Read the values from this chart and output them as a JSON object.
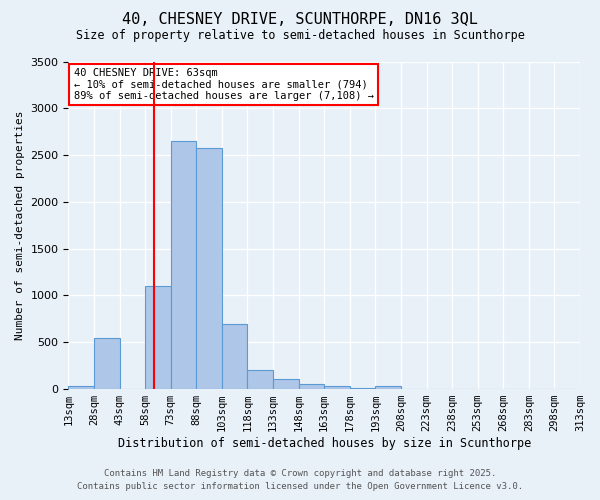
{
  "title": "40, CHESNEY DRIVE, SCUNTHORPE, DN16 3QL",
  "subtitle": "Size of property relative to semi-detached houses in Scunthorpe",
  "xlabel": "Distribution of semi-detached houses by size in Scunthorpe",
  "ylabel": "Number of semi-detached properties",
  "bin_labels": [
    "13sqm",
    "28sqm",
    "43sqm",
    "58sqm",
    "73sqm",
    "88sqm",
    "103sqm",
    "118sqm",
    "133sqm",
    "148sqm",
    "163sqm",
    "178sqm",
    "193sqm",
    "208sqm",
    "223sqm",
    "238sqm",
    "253sqm",
    "268sqm",
    "283sqm",
    "298sqm",
    "313sqm"
  ],
  "bin_left_edges": [
    13,
    28,
    43,
    58,
    73,
    88,
    103,
    118,
    133,
    148,
    163,
    178,
    193,
    208,
    223,
    238,
    253,
    268,
    283,
    298
  ],
  "bar_heights": [
    30,
    550,
    0,
    1100,
    2650,
    2580,
    700,
    200,
    110,
    50,
    30,
    10,
    28,
    0,
    0,
    0,
    0,
    0,
    0,
    0
  ],
  "bar_color": "#aec6e8",
  "bar_edge_color": "#5b9bd5",
  "property_size": 63,
  "red_line_color": "#ff0000",
  "annotation_text": "40 CHESNEY DRIVE: 63sqm\n← 10% of semi-detached houses are smaller (794)\n89% of semi-detached houses are larger (7,108) →",
  "annotation_box_color": "#ffffff",
  "annotation_box_edge": "#ff0000",
  "ylim": [
    0,
    3500
  ],
  "yticks": [
    0,
    500,
    1000,
    1500,
    2000,
    2500,
    3000,
    3500
  ],
  "background_color": "#e8f0f8",
  "grid_color": "#ffffff",
  "footer_line1": "Contains HM Land Registry data © Crown copyright and database right 2025.",
  "footer_line2": "Contains public sector information licensed under the Open Government Licence v3.0."
}
